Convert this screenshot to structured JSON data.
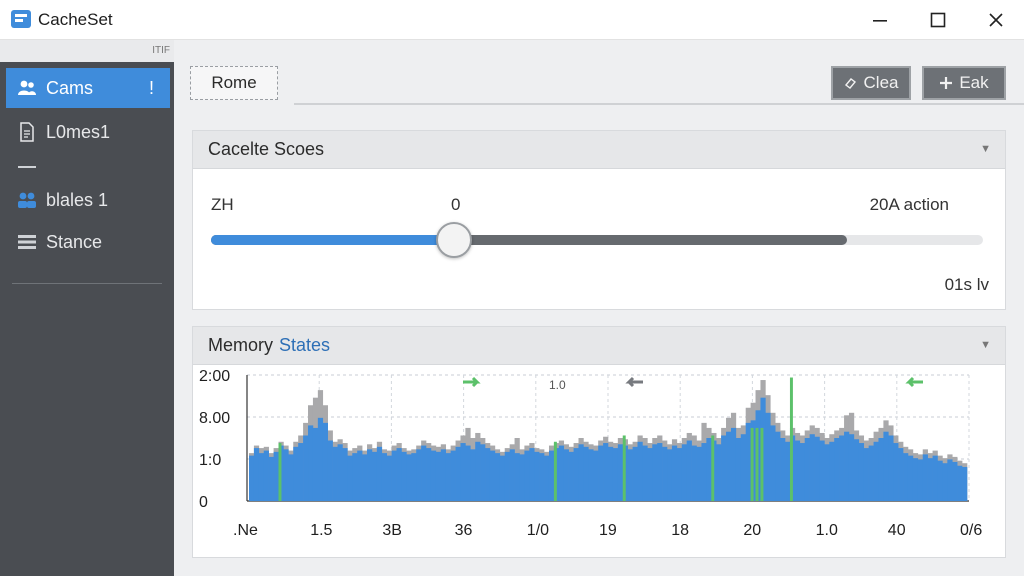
{
  "window": {
    "title": "CacheSet",
    "icons": {
      "app": "app-icon",
      "minimize": "minimize-icon",
      "maximize": "maximize-icon",
      "close": "close-icon"
    }
  },
  "sidebar": {
    "strip_text": "ITIF",
    "items": [
      {
        "label": "Cams",
        "badge": "!",
        "icon": "users-icon",
        "active": true
      },
      {
        "label": "L0mes1",
        "icon": "document-icon"
      },
      {
        "label": "blales 1",
        "icon": "group-icon"
      },
      {
        "label": "Stance",
        "icon": "list-icon"
      }
    ]
  },
  "tabs": [
    {
      "label": "Rome"
    }
  ],
  "toolbar": {
    "clear_label": "Clea",
    "add_label": "Eak",
    "clear_icon": "eraser-icon",
    "add_icon": "plus-icon"
  },
  "cache_panel": {
    "title": "Cacelte Scoes",
    "left_label": "ZH",
    "mid_label": "0",
    "right_label": "20A action",
    "footer_label": "01s lv",
    "slider_value": 0.315,
    "dark_extent": 0.824
  },
  "memory_panel": {
    "title_main": "Memory",
    "title_accent": "States",
    "mid_top_label": "1.0",
    "colors": {
      "blue": "#3f8cdb",
      "green": "#5cc16a",
      "gray": "#a9a9ab"
    }
  },
  "chart_data": {
    "type": "bar",
    "y_tick_labels": [
      "2:00",
      "8.00",
      "1:0",
      "0"
    ],
    "x_tick_labels": [
      ".Ne",
      "1.5",
      "3B",
      "36",
      "1/0",
      "19",
      "18",
      "20",
      "1.0",
      "40",
      "0/6"
    ],
    "ylim": [
      0,
      1
    ],
    "grid": true,
    "series": [
      {
        "color": "#3f8cdb",
        "values": [
          0.36,
          0.42,
          0.38,
          0.4,
          0.35,
          0.39,
          0.44,
          0.41,
          0.37,
          0.43,
          0.46,
          0.52,
          0.6,
          0.58,
          0.66,
          0.62,
          0.48,
          0.43,
          0.45,
          0.42,
          0.36,
          0.38,
          0.4,
          0.37,
          0.41,
          0.39,
          0.43,
          0.38,
          0.36,
          0.4,
          0.42,
          0.39,
          0.37,
          0.38,
          0.41,
          0.44,
          0.42,
          0.4,
          0.39,
          0.41,
          0.38,
          0.4,
          0.43,
          0.46,
          0.44,
          0.41,
          0.47,
          0.45,
          0.42,
          0.4,
          0.38,
          0.36,
          0.39,
          0.41,
          0.38,
          0.37,
          0.4,
          0.42,
          0.39,
          0.38,
          0.36,
          0.4,
          0.42,
          0.44,
          0.41,
          0.39,
          0.42,
          0.45,
          0.43,
          0.41,
          0.4,
          0.44,
          0.46,
          0.43,
          0.42,
          0.45,
          0.44,
          0.41,
          0.43,
          0.47,
          0.44,
          0.42,
          0.45,
          0.46,
          0.43,
          0.41,
          0.44,
          0.42,
          0.45,
          0.48,
          0.44,
          0.43,
          0.46,
          0.5,
          0.48,
          0.45,
          0.52,
          0.55,
          0.58,
          0.5,
          0.53,
          0.62,
          0.64,
          0.72,
          0.82,
          0.7,
          0.6,
          0.55,
          0.5,
          0.47,
          0.52,
          0.48,
          0.46,
          0.5,
          0.53,
          0.51,
          0.48,
          0.45,
          0.47,
          0.5,
          0.52,
          0.55,
          0.53,
          0.49,
          0.46,
          0.42,
          0.44,
          0.47,
          0.5,
          0.55,
          0.52,
          0.46,
          0.42,
          0.38,
          0.36,
          0.34,
          0.33,
          0.37,
          0.34,
          0.36,
          0.32,
          0.3,
          0.33,
          0.31,
          0.28,
          0.27
        ]
      },
      {
        "color": "#a9a9ab",
        "values": [
          0.38,
          0.44,
          0.42,
          0.43,
          0.38,
          0.42,
          0.47,
          0.44,
          0.4,
          0.47,
          0.52,
          0.62,
          0.76,
          0.82,
          0.88,
          0.76,
          0.56,
          0.47,
          0.49,
          0.46,
          0.4,
          0.42,
          0.44,
          0.4,
          0.45,
          0.42,
          0.47,
          0.41,
          0.4,
          0.44,
          0.46,
          0.42,
          0.4,
          0.41,
          0.44,
          0.48,
          0.46,
          0.44,
          0.43,
          0.45,
          0.41,
          0.44,
          0.48,
          0.52,
          0.58,
          0.5,
          0.54,
          0.5,
          0.46,
          0.44,
          0.41,
          0.39,
          0.42,
          0.45,
          0.5,
          0.41,
          0.44,
          0.46,
          0.42,
          0.41,
          0.39,
          0.44,
          0.46,
          0.48,
          0.45,
          0.43,
          0.46,
          0.5,
          0.47,
          0.45,
          0.44,
          0.48,
          0.51,
          0.47,
          0.46,
          0.5,
          0.49,
          0.45,
          0.47,
          0.52,
          0.5,
          0.46,
          0.5,
          0.52,
          0.48,
          0.45,
          0.49,
          0.46,
          0.5,
          0.54,
          0.52,
          0.48,
          0.62,
          0.58,
          0.54,
          0.5,
          0.58,
          0.66,
          0.7,
          0.58,
          0.6,
          0.74,
          0.78,
          0.88,
          0.96,
          0.84,
          0.7,
          0.62,
          0.56,
          0.52,
          0.58,
          0.54,
          0.52,
          0.56,
          0.6,
          0.58,
          0.54,
          0.5,
          0.53,
          0.56,
          0.58,
          0.68,
          0.7,
          0.56,
          0.52,
          0.48,
          0.5,
          0.55,
          0.58,
          0.64,
          0.6,
          0.52,
          0.47,
          0.43,
          0.41,
          0.38,
          0.37,
          0.41,
          0.38,
          0.4,
          0.36,
          0.34,
          0.37,
          0.35,
          0.32,
          0.3
        ]
      },
      {
        "color": "#5cc16a",
        "values": [
          0,
          0,
          0,
          0,
          0,
          0,
          0.46,
          0,
          0,
          0,
          0,
          0,
          0,
          0,
          0,
          0,
          0,
          0,
          0,
          0,
          0,
          0,
          0,
          0,
          0,
          0,
          0,
          0,
          0,
          0,
          0,
          0,
          0,
          0,
          0,
          0,
          0,
          0,
          0,
          0,
          0,
          0,
          0,
          0,
          0,
          0,
          0,
          0,
          0,
          0,
          0,
          0,
          0,
          0,
          0,
          0,
          0,
          0,
          0,
          0,
          0,
          0,
          0.47,
          0,
          0,
          0,
          0,
          0,
          0,
          0,
          0,
          0,
          0,
          0,
          0,
          0,
          0.52,
          0,
          0,
          0,
          0,
          0,
          0,
          0,
          0,
          0,
          0,
          0,
          0,
          0,
          0,
          0,
          0,
          0,
          0.52,
          0,
          0,
          0,
          0,
          0,
          0,
          0,
          0.58,
          0.58,
          0.58,
          0,
          0,
          0,
          0,
          0,
          0.98,
          0,
          0,
          0,
          0,
          0,
          0,
          0,
          0,
          0,
          0,
          0,
          0,
          0,
          0,
          0,
          0,
          0,
          0,
          0,
          0,
          0,
          0,
          0,
          0,
          0,
          0,
          0,
          0,
          0,
          0,
          0,
          0,
          0
        ]
      }
    ]
  }
}
